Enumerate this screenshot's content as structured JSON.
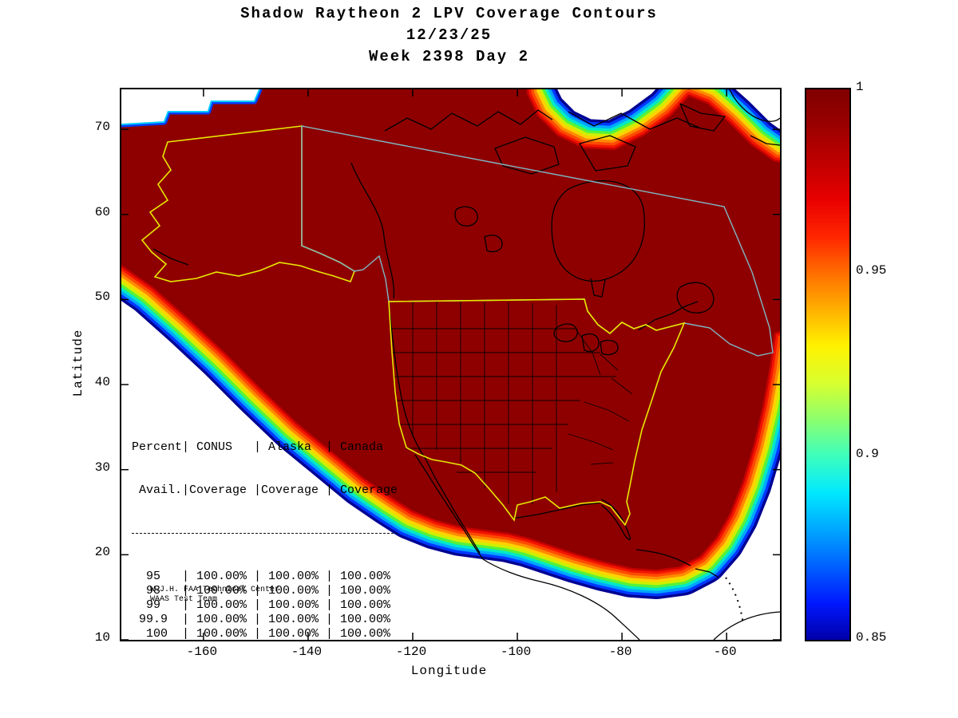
{
  "title_lines": [
    "Shadow Raytheon 2 LPV Coverage Contours",
    "12/23/25",
    "Week 2398 Day 2"
  ],
  "axes": {
    "xlabel": "Longitude",
    "ylabel": "Latitude",
    "x_ticks": [
      -160,
      -140,
      -120,
      -100,
      -80,
      -60
    ],
    "y_ticks": [
      10,
      20,
      30,
      40,
      50,
      60,
      70
    ],
    "x_range": [
      -175.7,
      -49.8
    ],
    "y_range": [
      10,
      74.7
    ]
  },
  "colorbar": {
    "tick_labels": [
      "1",
      "0.95",
      "0.9",
      "0.85"
    ],
    "tick_values": [
      1,
      0.95,
      0.9,
      0.85
    ],
    "range_min": 0.85,
    "range_max": 1,
    "gradient_top_to_bottom": [
      "#800000",
      "#9B0000",
      "#C00000",
      "#E80000",
      "#FF2500",
      "#FF6D00",
      "#FFB000",
      "#FFF200",
      "#D8FF2E",
      "#8CFF6E",
      "#3CFFBE",
      "#00E8FF",
      "#00A6FF",
      "#0060FF",
      "#0018FF",
      "#0000A8"
    ]
  },
  "table": {
    "header_lines": [
      "Percent| CONUS   | Alaska  | Canada",
      " Avail.|Coverage |Coverage | Coverage"
    ],
    "columns": [
      "Percent Avail.",
      "CONUS Coverage",
      "Alaska Coverage",
      "Canada Coverage"
    ],
    "rows": [
      [
        "95",
        "100.00%",
        "100.00%",
        "100.00%"
      ],
      [
        "98",
        "100.00%",
        "100.00%",
        "100.00%"
      ],
      [
        "99",
        "100.00%",
        "100.00%",
        "100.00%"
      ],
      [
        "99.9",
        "100.00%",
        "100.00%",
        "100.00%"
      ],
      [
        "100",
        "100.00%",
        "100.00%",
        "100.00%"
      ]
    ]
  },
  "credit_lines": [
    "W.J.H. FAA Technical Center",
    "WAAS Test Team"
  ],
  "map": {
    "interior_color": "#8E0000",
    "band_colors_outer_to_inner": [
      "#000093",
      "#0038FF",
      "#00A6FF",
      "#00E8C8",
      "#55F23C",
      "#CFEF00",
      "#FFD300",
      "#FF8A00",
      "#FF4A00",
      "#F21500",
      "#C60000"
    ],
    "coastline_color": "#000000",
    "conus_outline_color": "#E8E800",
    "alaska_outline_color": "#E8E800",
    "canada_outline_color": "#7FB8C4"
  },
  "chart_data": {
    "type": "heatmap",
    "subtype": "filled_contour_geographic_coverage_map",
    "title": "Shadow Raytheon 2 LPV Coverage Contours",
    "date": "12/23/25",
    "week": 2398,
    "day": 2,
    "xlabel": "Longitude",
    "ylabel": "Latitude",
    "xlim": [
      -175.7,
      -49.8
    ],
    "ylim": [
      10,
      74.7
    ],
    "x_ticks": [
      -160,
      -140,
      -120,
      -100,
      -80,
      -60
    ],
    "y_ticks": [
      10,
      20,
      30,
      40,
      50,
      60,
      70
    ],
    "grid": false,
    "colormap": "jet",
    "colorbar_range": [
      0.85,
      1
    ],
    "colorbar_ticks": [
      1,
      0.95,
      0.9,
      0.85
    ],
    "interior_value": 1.0,
    "contour_band_values_outer_to_inner": [
      0.85,
      0.865,
      0.88,
      0.895,
      0.91,
      0.925,
      0.94,
      0.955,
      0.97,
      0.985,
      0.995
    ],
    "regions": [
      "CONUS",
      "Alaska",
      "Canada"
    ],
    "coverage_table": {
      "columns": [
        "Percent Avail.",
        "CONUS Coverage",
        "Alaska Coverage",
        "Canada Coverage"
      ],
      "rows": [
        [
          95,
          "100.00%",
          "100.00%",
          "100.00%"
        ],
        [
          98,
          "100.00%",
          "100.00%",
          "100.00%"
        ],
        [
          99,
          "100.00%",
          "100.00%",
          "100.00%"
        ],
        [
          99.9,
          "100.00%",
          "100.00%",
          "100.00%"
        ],
        [
          100,
          "100.00%",
          "100.00%",
          "100.00%"
        ]
      ]
    },
    "annotations": [
      "W.J.H. FAA Technical Center",
      "WAAS Test Team"
    ]
  }
}
